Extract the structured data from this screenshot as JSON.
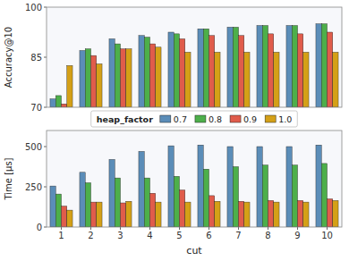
{
  "chart_data": [
    {
      "type": "bar",
      "categories": [
        "1",
        "2",
        "3",
        "4",
        "5",
        "6",
        "7",
        "8",
        "9",
        "10"
      ],
      "series": [
        {
          "name": "0.7",
          "color": "#5B8DB8",
          "values": [
            72.5,
            87.0,
            90.5,
            91.5,
            92.5,
            93.5,
            94.0,
            94.5,
            94.5,
            95.0
          ]
        },
        {
          "name": "0.8",
          "color": "#4DAF4A",
          "values": [
            73.5,
            87.5,
            89.0,
            91.0,
            92.0,
            93.5,
            94.0,
            94.5,
            94.5,
            95.0
          ]
        },
        {
          "name": "0.9",
          "color": "#E05C4B",
          "values": [
            71.0,
            85.5,
            87.5,
            89.0,
            90.5,
            91.5,
            91.5,
            92.0,
            92.0,
            92.5
          ]
        },
        {
          "name": "1.0",
          "color": "#D4A017",
          "values": [
            82.5,
            83.0,
            87.5,
            88.0,
            86.5,
            86.5,
            86.5,
            86.5,
            86.5,
            86.5
          ]
        }
      ],
      "ylim": [
        70,
        100
      ],
      "yticks": [
        70,
        85,
        100
      ],
      "ylabel": "Accuracy@10",
      "legend": "bottom",
      "legend_title": "heap_factor",
      "tick_labels": "y",
      "grid": false
    },
    {
      "type": "bar",
      "categories": [
        "1",
        "2",
        "3",
        "4",
        "5",
        "6",
        "7",
        "8",
        "9",
        "10"
      ],
      "series": [
        {
          "name": "0.7",
          "color": "#5B8DB8",
          "values": [
            255,
            340,
            420,
            470,
            505,
            510,
            500,
            500,
            500,
            510
          ]
        },
        {
          "name": "0.8",
          "color": "#4DAF4A",
          "values": [
            205,
            275,
            305,
            305,
            315,
            360,
            375,
            385,
            385,
            395
          ]
        },
        {
          "name": "0.9",
          "color": "#E05C4B",
          "values": [
            130,
            155,
            150,
            210,
            230,
            195,
            160,
            165,
            165,
            175
          ]
        },
        {
          "name": "1.0",
          "color": "#D4A017",
          "values": [
            105,
            155,
            160,
            155,
            155,
            160,
            155,
            155,
            155,
            165
          ]
        }
      ],
      "ylim": [
        0,
        600
      ],
      "yticks": [
        0,
        250,
        500
      ],
      "xlabel": "cut",
      "ylabel": "Time [μs]",
      "grid": false
    }
  ]
}
